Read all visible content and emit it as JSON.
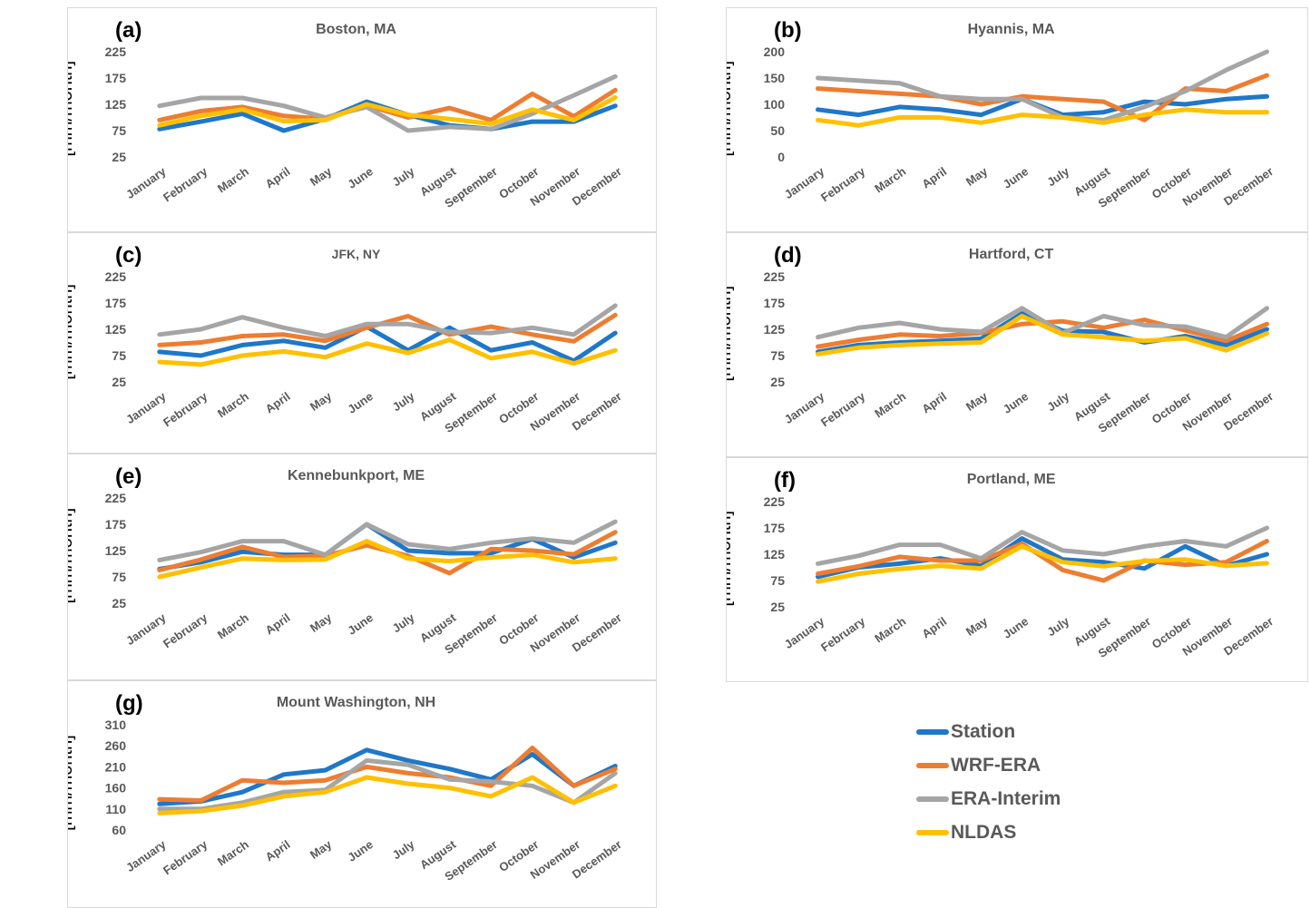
{
  "colors": {
    "Station": "#1f77c9",
    "WRF-ERA": "#ed7d31",
    "ERA-Interim": "#a5a5a5",
    "NLDAS": "#ffc000"
  },
  "legend": {
    "items": [
      {
        "name": "Station",
        "color": "#1f77c9"
      },
      {
        "name": "WRF-ERA",
        "color": "#ed7d31"
      },
      {
        "name": "ERA-Interim",
        "color": "#a5a5a5"
      },
      {
        "name": "NLDAS",
        "color": "#ffc000"
      }
    ]
  },
  "chart_data": [
    {
      "type": "line",
      "panel_label": "(a)",
      "title": "Boston, MA",
      "ylabel": "Precipitation Rate [mm/month]",
      "categories": [
        "January",
        "February",
        "March",
        "April",
        "May",
        "June",
        "July",
        "August",
        "September",
        "October",
        "November",
        "December"
      ],
      "yticks": [
        25,
        75,
        125,
        175,
        225
      ],
      "ylim": [
        25,
        225
      ],
      "series": [
        {
          "name": "Station",
          "values": [
            78,
            92,
            107,
            75,
            97,
            130,
            105,
            85,
            78,
            92,
            92,
            122
          ]
        },
        {
          "name": "WRF-ERA",
          "values": [
            95,
            112,
            120,
            103,
            97,
            123,
            100,
            118,
            95,
            145,
            102,
            152
          ]
        },
        {
          "name": "ERA-Interim",
          "values": [
            122,
            137,
            137,
            122,
            100,
            120,
            75,
            82,
            78,
            107,
            142,
            178
          ]
        },
        {
          "name": "NLDAS",
          "values": [
            85,
            103,
            115,
            93,
            95,
            125,
            105,
            97,
            88,
            115,
            95,
            138
          ]
        }
      ]
    },
    {
      "type": "line",
      "panel_label": "(b)",
      "title": "Hyannis, MA",
      "ylabel": "Precipitation Rate [mm/month]",
      "categories": [
        "January",
        "February",
        "March",
        "April",
        "May",
        "June",
        "July",
        "August",
        "September",
        "October",
        "November",
        "December"
      ],
      "yticks": [
        0,
        50,
        100,
        150,
        200
      ],
      "ylim": [
        0,
        200
      ],
      "series": [
        {
          "name": "Station",
          "values": [
            90,
            80,
            95,
            90,
            80,
            110,
            80,
            85,
            105,
            100,
            110,
            115
          ]
        },
        {
          "name": "WRF-ERA",
          "values": [
            130,
            125,
            120,
            115,
            100,
            115,
            110,
            105,
            70,
            130,
            125,
            155
          ]
        },
        {
          "name": "ERA-Interim",
          "values": [
            150,
            145,
            140,
            115,
            110,
            110,
            75,
            70,
            95,
            125,
            165,
            200
          ]
        },
        {
          "name": "NLDAS",
          "values": [
            70,
            60,
            75,
            75,
            65,
            80,
            75,
            65,
            80,
            90,
            85,
            85
          ]
        }
      ]
    },
    {
      "type": "line",
      "panel_label": "(c)",
      "title": "JFK, NY",
      "ylabel": "Precipitation Rate [mm/month]",
      "categories": [
        "January",
        "February",
        "March",
        "April",
        "May",
        "June",
        "July",
        "August",
        "September",
        "October",
        "November",
        "December"
      ],
      "yticks": [
        25,
        75,
        125,
        175,
        225
      ],
      "ylim": [
        25,
        225
      ],
      "series": [
        {
          "name": "Station",
          "values": [
            82,
            75,
            95,
            103,
            90,
            130,
            85,
            128,
            85,
            100,
            65,
            118
          ]
        },
        {
          "name": "WRF-ERA",
          "values": [
            95,
            100,
            112,
            115,
            103,
            128,
            150,
            115,
            130,
            115,
            102,
            152
          ]
        },
        {
          "name": "ERA-Interim",
          "values": [
            115,
            125,
            148,
            128,
            112,
            135,
            135,
            120,
            118,
            128,
            115,
            170
          ]
        },
        {
          "name": "NLDAS",
          "values": [
            63,
            58,
            75,
            83,
            72,
            98,
            80,
            105,
            70,
            82,
            60,
            85
          ]
        }
      ]
    },
    {
      "type": "line",
      "panel_label": "(d)",
      "title": "Hartford, CT",
      "ylabel": "Precipitation Rate [mm/month]",
      "categories": [
        "January",
        "February",
        "March",
        "April",
        "May",
        "June",
        "July",
        "August",
        "September",
        "October",
        "November",
        "December"
      ],
      "yticks": [
        25,
        75,
        125,
        175,
        225
      ],
      "ylim": [
        25,
        225
      ],
      "series": [
        {
          "name": "Station",
          "values": [
            82,
            95,
            100,
            103,
            107,
            155,
            122,
            120,
            100,
            112,
            95,
            125
          ]
        },
        {
          "name": "WRF-ERA",
          "values": [
            92,
            105,
            115,
            112,
            118,
            135,
            140,
            128,
            143,
            123,
            103,
            135
          ]
        },
        {
          "name": "ERA-Interim",
          "values": [
            110,
            128,
            137,
            125,
            120,
            165,
            118,
            150,
            133,
            130,
            110,
            165
          ]
        },
        {
          "name": "NLDAS",
          "values": [
            78,
            90,
            95,
            98,
            100,
            150,
            115,
            110,
            103,
            108,
            85,
            117
          ]
        }
      ]
    },
    {
      "type": "line",
      "panel_label": "(e)",
      "title": "Kennebunkport, ME",
      "ylabel": "Precipitation Rate [mm/month]",
      "categories": [
        "January",
        "February",
        "March",
        "April",
        "May",
        "June",
        "July",
        "August",
        "September",
        "October",
        "November",
        "December"
      ],
      "yticks": [
        25,
        75,
        125,
        175,
        225
      ],
      "ylim": [
        25,
        225
      ],
      "series": [
        {
          "name": "Station",
          "values": [
            90,
            103,
            123,
            117,
            117,
            175,
            125,
            120,
            120,
            147,
            112,
            140
          ]
        },
        {
          "name": "WRF-ERA",
          "values": [
            88,
            108,
            132,
            113,
            115,
            135,
            115,
            82,
            128,
            125,
            118,
            160
          ]
        },
        {
          "name": "ERA-Interim",
          "values": [
            107,
            122,
            143,
            143,
            117,
            175,
            137,
            128,
            140,
            148,
            140,
            180
          ]
        },
        {
          "name": "NLDAS",
          "values": [
            75,
            93,
            110,
            107,
            108,
            143,
            110,
            105,
            112,
            117,
            103,
            110
          ]
        }
      ]
    },
    {
      "type": "line",
      "panel_label": "(f)",
      "title": "Portland, ME",
      "ylabel": "Precipitation Rate [mm/month]",
      "categories": [
        "January",
        "February",
        "March",
        "April",
        "May",
        "June",
        "July",
        "August",
        "September",
        "October",
        "November",
        "December"
      ],
      "yticks": [
        25,
        75,
        125,
        175,
        225
      ],
      "ylim": [
        25,
        225
      ],
      "series": [
        {
          "name": "Station",
          "values": [
            82,
            100,
            107,
            117,
            103,
            155,
            115,
            110,
            98,
            140,
            103,
            125
          ]
        },
        {
          "name": "WRF-ERA",
          "values": [
            88,
            102,
            120,
            113,
            113,
            145,
            95,
            75,
            113,
            105,
            110,
            150
          ]
        },
        {
          "name": "ERA-Interim",
          "values": [
            107,
            122,
            143,
            143,
            117,
            167,
            132,
            125,
            140,
            150,
            140,
            175
          ]
        },
        {
          "name": "NLDAS",
          "values": [
            73,
            88,
            97,
            103,
            98,
            140,
            110,
            102,
            112,
            115,
            103,
            108
          ]
        }
      ]
    },
    {
      "type": "line",
      "panel_label": "(g)",
      "title": "Mount Washington, NH",
      "ylabel": "Precipitation Rate [mm/month]",
      "categories": [
        "January",
        "February",
        "March",
        "April",
        "May",
        "June",
        "July",
        "August",
        "September",
        "October",
        "November",
        "December"
      ],
      "yticks": [
        60,
        110,
        160,
        210,
        260,
        310
      ],
      "ylim": [
        60,
        310
      ],
      "series": [
        {
          "name": "Station",
          "values": [
            122,
            128,
            150,
            192,
            202,
            250,
            225,
            205,
            180,
            240,
            165,
            212
          ]
        },
        {
          "name": "WRF-ERA",
          "values": [
            133,
            130,
            178,
            172,
            178,
            210,
            195,
            185,
            165,
            255,
            165,
            205
          ]
        },
        {
          "name": "ERA-Interim",
          "values": [
            110,
            110,
            125,
            150,
            155,
            225,
            215,
            180,
            175,
            165,
            125,
            195
          ]
        },
        {
          "name": "NLDAS",
          "values": [
            100,
            105,
            118,
            140,
            150,
            185,
            170,
            160,
            140,
            185,
            125,
            165
          ]
        }
      ]
    }
  ]
}
